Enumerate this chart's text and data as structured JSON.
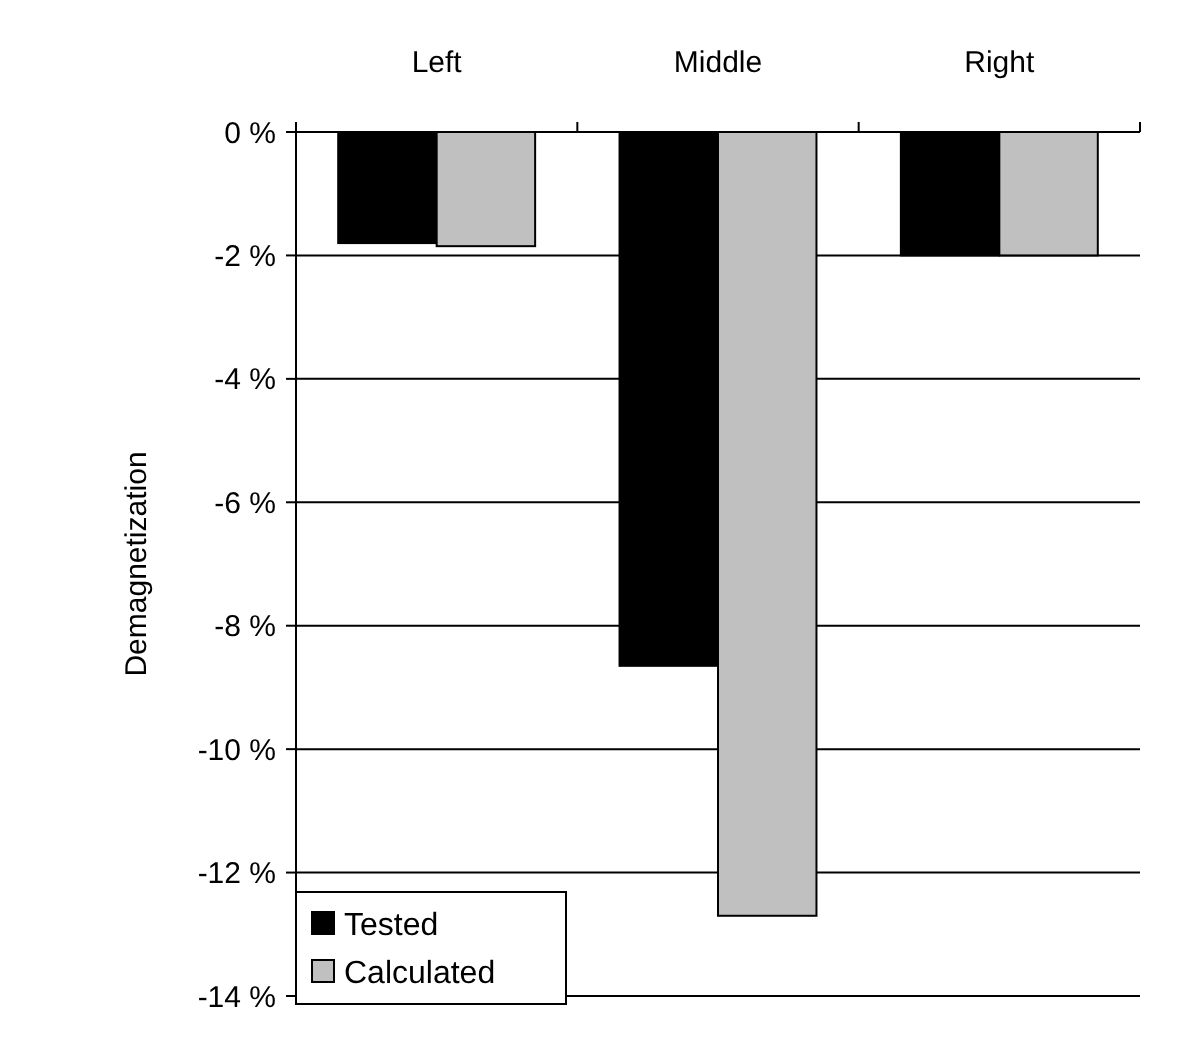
{
  "chart_data": {
    "type": "bar",
    "ylabel": "Demagnetization",
    "categories": [
      "Left",
      "Middle",
      "Right"
    ],
    "series": [
      {
        "name": "Tested",
        "color": "#000000",
        "values": [
          -1.8,
          -8.65,
          -2.0
        ]
      },
      {
        "name": "Calculated",
        "color": "#c0c0c0",
        "values": [
          -1.85,
          -12.7,
          -2.0
        ]
      }
    ],
    "ylim": [
      -14,
      0
    ],
    "yticks": [
      {
        "value": 0,
        "label": "0 %"
      },
      {
        "value": -2,
        "label": "-2 %"
      },
      {
        "value": -4,
        "label": "-4 %"
      },
      {
        "value": -6,
        "label": "-6 %"
      },
      {
        "value": -8,
        "label": "-8 %"
      },
      {
        "value": -10,
        "label": "-10 %"
      },
      {
        "value": -12,
        "label": "-12 %"
      },
      {
        "value": -14,
        "label": "-14 %"
      }
    ],
    "grid": "y",
    "legend": "bottom left"
  }
}
